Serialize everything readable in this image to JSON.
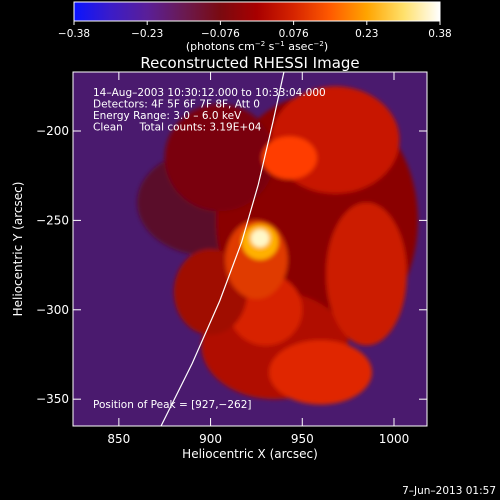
{
  "colorbar": {
    "ticks": [
      "−0.38",
      "−0.23",
      "−0.076",
      "0.076",
      "0.23",
      "0.38"
    ],
    "unit_label_main": "(photons cm",
    "unit_label_exp1": "−2",
    "unit_label_s": " s",
    "unit_label_exp2": "−1",
    "unit_label_asec": " asec",
    "unit_label_exp3": "−2",
    "unit_label_close": ")",
    "colors": [
      "#0a14ff",
      "#3b1cc8",
      "#5a1f98",
      "#6a1a52",
      "#7a0a10",
      "#a80000",
      "#d62400",
      "#ff5a00",
      "#ffa400",
      "#ffe06a",
      "#ffffff"
    ]
  },
  "chart_data": {
    "type": "heatmap",
    "title": "Reconstructed RHESSI Image",
    "xlabel": "Heliocentric X (arcsec)",
    "ylabel": "Heliocentric Y (arcsec)",
    "xlim": [
      825,
      1018
    ],
    "ylim": [
      -365,
      -167
    ],
    "x_ticks": [
      850,
      900,
      950,
      1000
    ],
    "y_ticks": [
      -200,
      -250,
      -300,
      -350
    ],
    "x_tick_labels": [
      "850",
      "900",
      "950",
      "1000"
    ],
    "y_tick_labels": [
      "−200",
      "−250",
      "−300",
      "−350"
    ],
    "value_range": [
      -0.38,
      0.38
    ],
    "peak": {
      "x": 927,
      "y": -262
    },
    "limb_curve": [
      [
        873,
        -365
      ],
      [
        890,
        -330
      ],
      [
        905,
        -295
      ],
      [
        917,
        -262
      ],
      [
        926,
        -230
      ],
      [
        934,
        -195
      ],
      [
        940,
        -167
      ]
    ],
    "info_lines": [
      "14–Aug–2003 10:30:12.000 to 10:33:04.000",
      "Detectors: 4F 5F 6F 7F 8F, Att 0",
      "Energy Range: 3.0 – 6.0 keV",
      "Clean     Total counts: 3.19E+04"
    ],
    "peak_label": "Position of Peak = [927,−262]"
  },
  "timestamp": "7–Jun–2013 01:57"
}
